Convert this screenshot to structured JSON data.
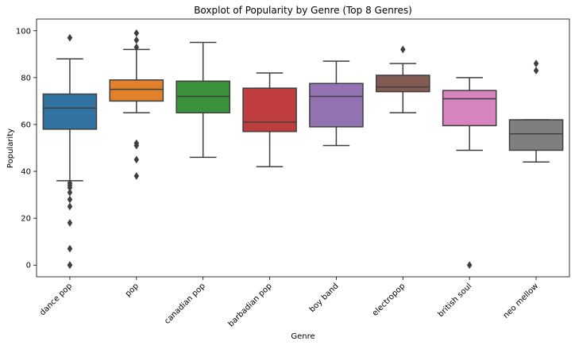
{
  "chart_data": {
    "type": "boxplot",
    "title": "Boxplot of Popularity by Genre (Top 8 Genres)",
    "xlabel": "Genre",
    "ylabel": "Popularity",
    "ylim": [
      -5,
      105
    ],
    "yticks": [
      0,
      20,
      40,
      60,
      80,
      100
    ],
    "grid": false,
    "categories": [
      "dance pop",
      "pop",
      "canadian pop",
      "barbadian pop",
      "boy band",
      "electropop",
      "british soul",
      "neo mellow"
    ],
    "colors": [
      "#3274a1",
      "#e1812c",
      "#3a923a",
      "#c03d3e",
      "#9372b2",
      "#845b53",
      "#d684bd",
      "#7f7f7f"
    ],
    "boxes": [
      {
        "whisker_low": 36,
        "q1": 58,
        "median": 67,
        "q3": 73,
        "whisker_high": 88,
        "outliers": [
          97,
          35,
          34,
          33,
          31,
          28,
          25,
          18,
          7,
          0,
          0
        ]
      },
      {
        "whisker_low": 65,
        "q1": 70,
        "median": 75,
        "q3": 79,
        "whisker_high": 92,
        "outliers": [
          99,
          96,
          93,
          52,
          51,
          45,
          38
        ]
      },
      {
        "whisker_low": 46,
        "q1": 65,
        "median": 72,
        "q3": 78.5,
        "whisker_high": 95,
        "outliers": []
      },
      {
        "whisker_low": 42,
        "q1": 57,
        "median": 61,
        "q3": 75.5,
        "whisker_high": 82,
        "outliers": []
      },
      {
        "whisker_low": 51,
        "q1": 59,
        "median": 72,
        "q3": 77.5,
        "whisker_high": 87,
        "outliers": []
      },
      {
        "whisker_low": 65,
        "q1": 74,
        "median": 76,
        "q3": 81,
        "whisker_high": 86,
        "outliers": [
          92
        ]
      },
      {
        "whisker_low": 49,
        "q1": 59.5,
        "median": 71,
        "q3": 74.5,
        "whisker_high": 80,
        "outliers": [
          0
        ]
      },
      {
        "whisker_low": 44,
        "q1": 49,
        "median": 56,
        "q3": 62,
        "whisker_high": 62,
        "outliers": [
          86,
          83
        ]
      }
    ]
  }
}
